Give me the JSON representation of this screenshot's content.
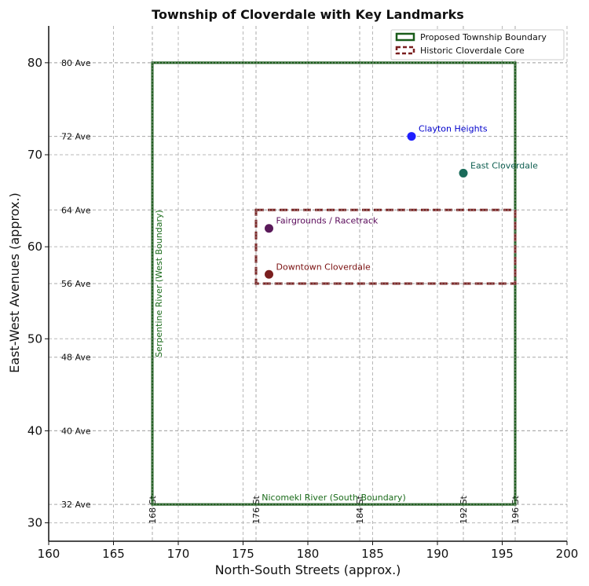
{
  "chart_data": {
    "type": "scatter",
    "title": "Township of Cloverdale with Key Landmarks",
    "xlabel": "North-South Streets (approx.)",
    "ylabel": "East-West Avenues (approx.)",
    "xlim": [
      160,
      200
    ],
    "ylim": [
      28,
      84
    ],
    "xticks": [
      160,
      165,
      170,
      175,
      180,
      185,
      190,
      195,
      200
    ],
    "yticks": [
      30,
      40,
      50,
      60,
      70,
      80
    ],
    "grid": true,
    "legend_position": "top-right",
    "streets": [
      {
        "x": 168,
        "label": "168 St"
      },
      {
        "x": 176,
        "label": "176 St"
      },
      {
        "x": 184,
        "label": "184 St"
      },
      {
        "x": 192,
        "label": "192 St"
      },
      {
        "x": 196,
        "label": "196 St"
      }
    ],
    "avenues": [
      {
        "y": 32,
        "label": "32 Ave"
      },
      {
        "y": 40,
        "label": "40 Ave"
      },
      {
        "y": 48,
        "label": "48 Ave"
      },
      {
        "y": 56,
        "label": "56 Ave"
      },
      {
        "y": 64,
        "label": "64 Ave"
      },
      {
        "y": 72,
        "label": "72 Ave"
      },
      {
        "y": 80,
        "label": "80 Ave"
      }
    ],
    "regions": [
      {
        "name": "Proposed Township Boundary",
        "x": [
          168,
          196
        ],
        "y": [
          32,
          80
        ],
        "color": "#1a5c1a",
        "style": "solid"
      },
      {
        "name": "Historic Cloverdale Core",
        "x": [
          176,
          196
        ],
        "y": [
          56,
          64
        ],
        "color": "#7a1f1f",
        "style": "dashed"
      }
    ],
    "landmarks": [
      {
        "name": "Clayton Heights",
        "x": 188,
        "y": 72,
        "color": "#1f1fff",
        "text_color": "#0000cc"
      },
      {
        "name": "East Cloverdale",
        "x": 192,
        "y": 68,
        "color": "#1a6b5a",
        "text_color": "#0e5e50"
      },
      {
        "name": "Fairgrounds / Racetrack",
        "x": 177,
        "y": 62,
        "color": "#5a1a5a",
        "text_color": "#5a0a5a"
      },
      {
        "name": "Downtown Cloverdale",
        "x": 177,
        "y": 57,
        "color": "#7a1f1f",
        "text_color": "#7a1010"
      }
    ],
    "annotations": [
      {
        "text": "Serpentine River (West Boundary)",
        "color": "#1a6b1a"
      },
      {
        "text": "Nicomekl River (South Boundary)",
        "color": "#1a6b1a"
      }
    ]
  }
}
